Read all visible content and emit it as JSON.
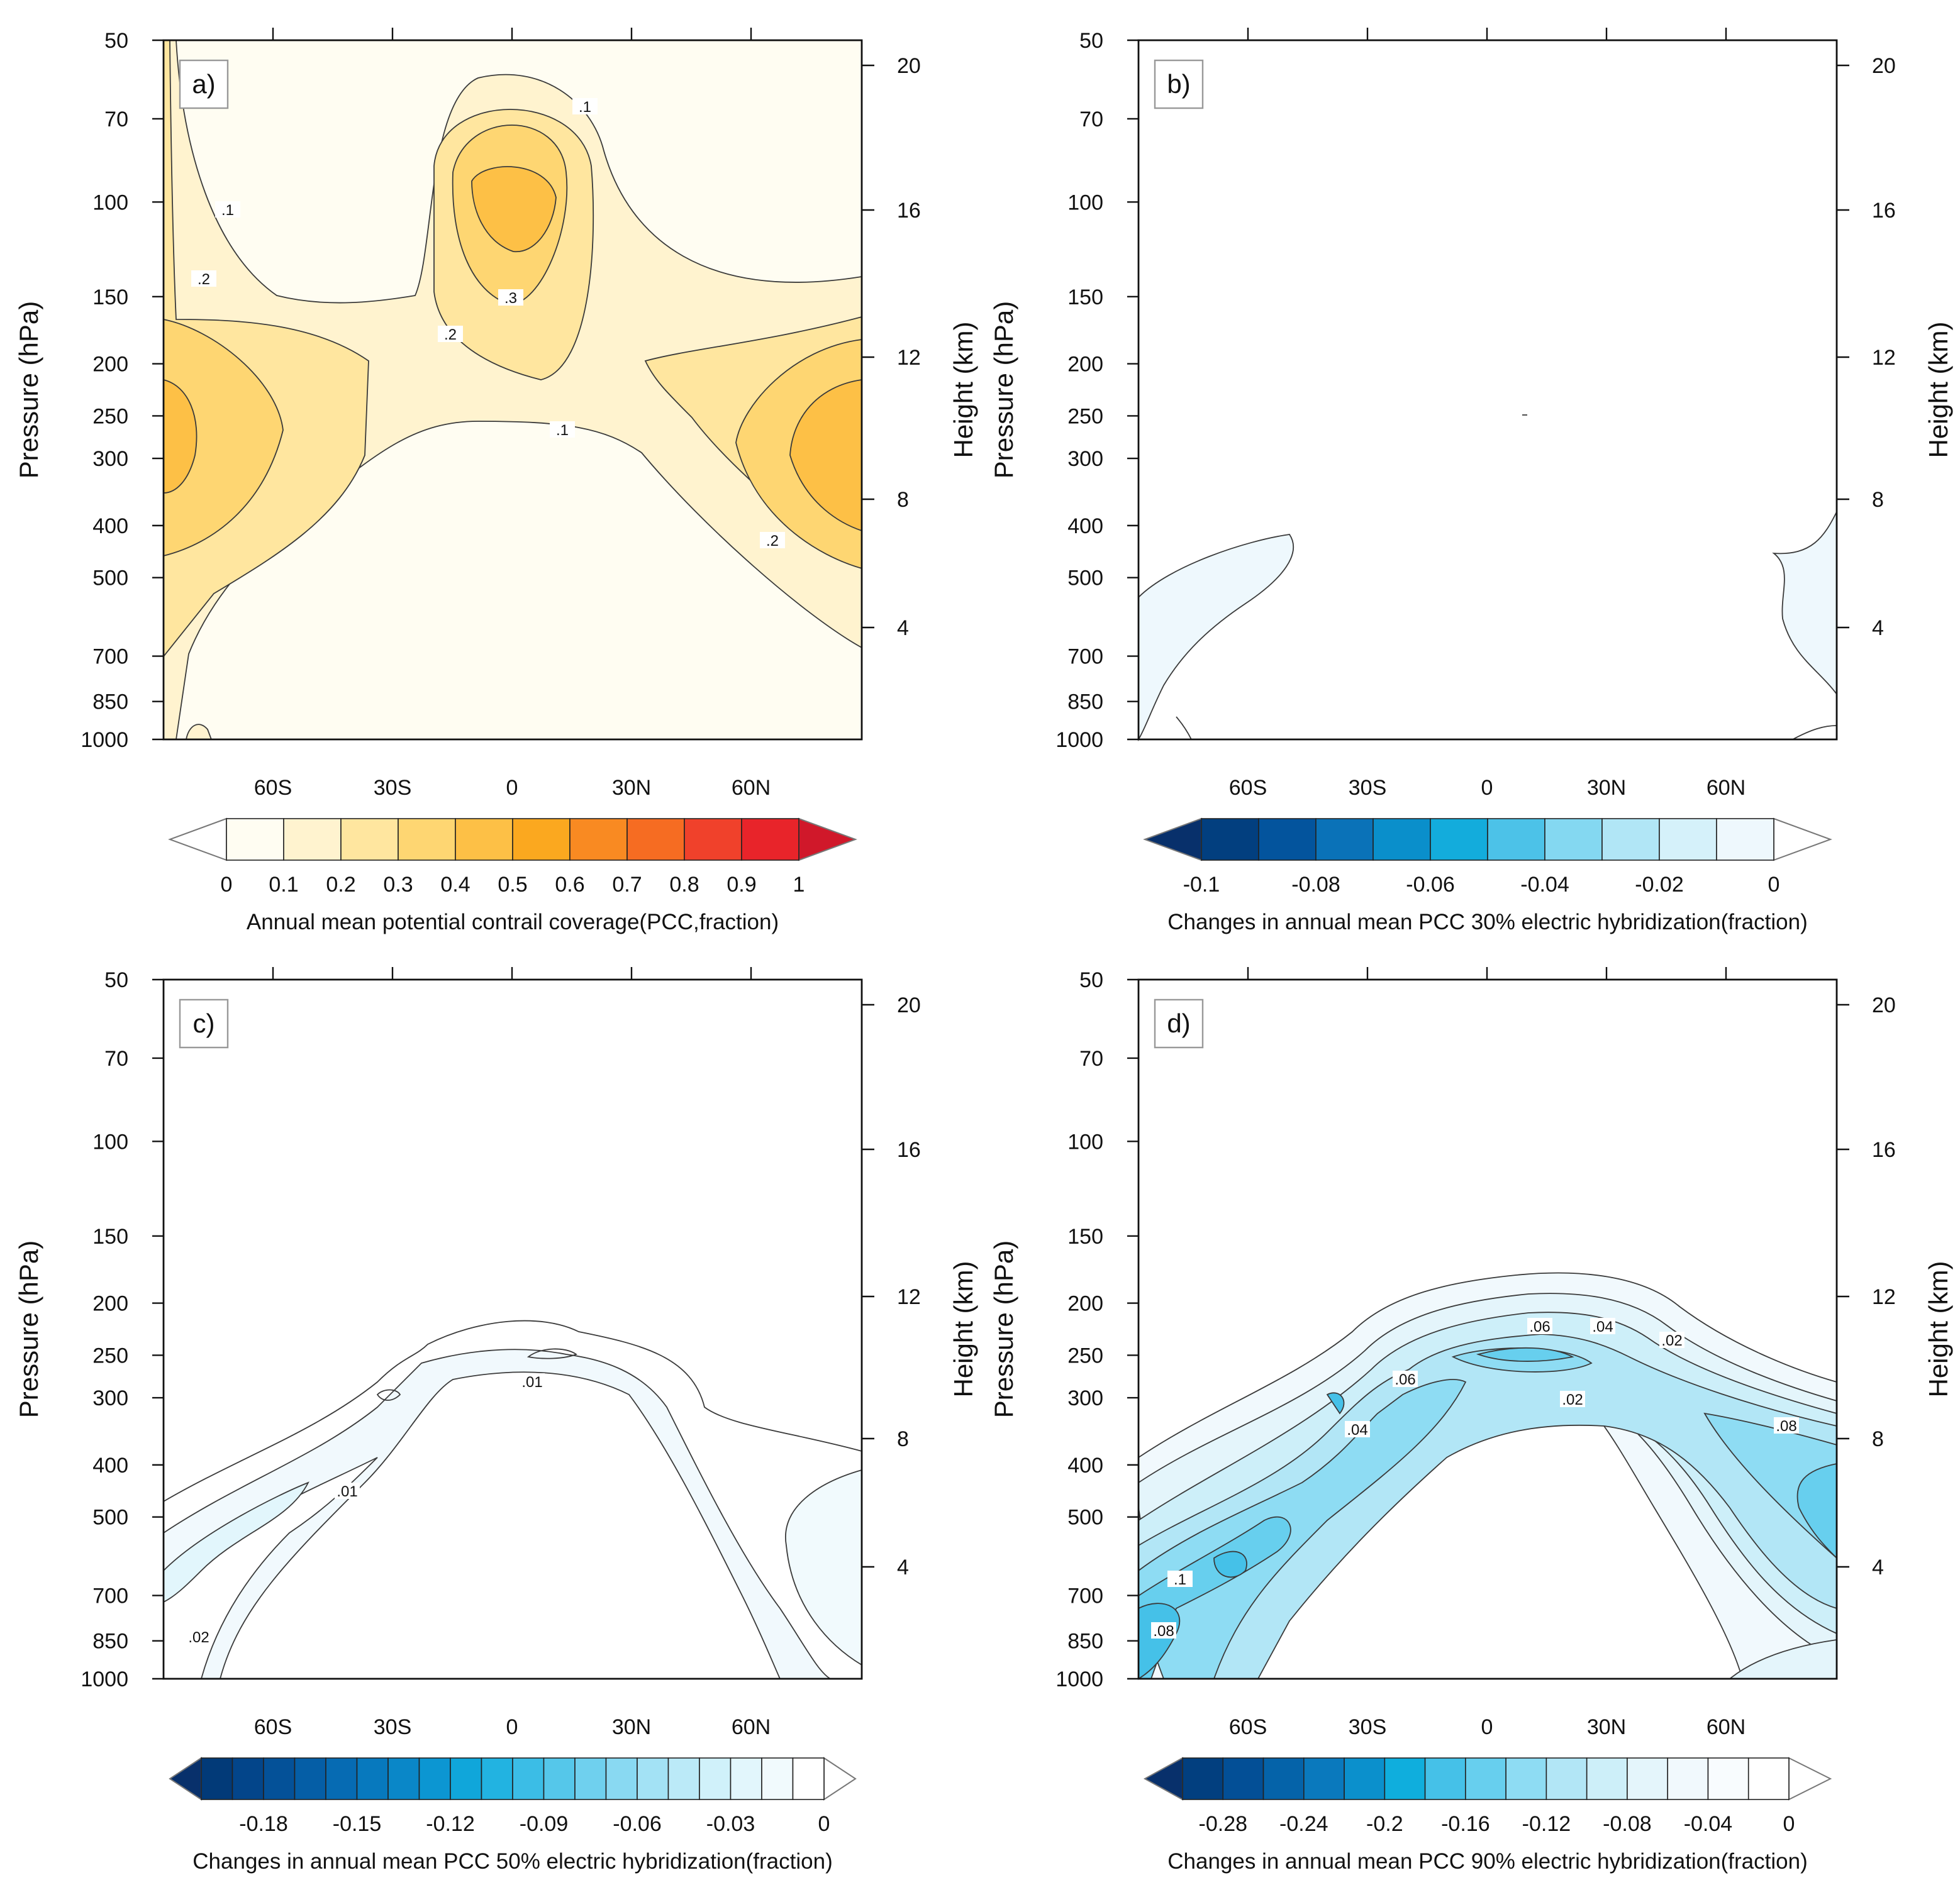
{
  "chart_data": [
    {
      "type": "heatmap",
      "panel_label": "a)",
      "ylabel": "Pressure (hPa)",
      "ylabel_right": "Height (km)",
      "xlabel": "",
      "x_ticks": [
        "60S",
        "30S",
        "0",
        "30N",
        "60N"
      ],
      "x_tick_values": [
        -60,
        -30,
        0,
        30,
        60
      ],
      "y_ticks": [
        "50",
        "70",
        "100",
        "150",
        "200",
        "250",
        "300",
        "400",
        "500",
        "700",
        "850",
        "1000"
      ],
      "y_tick_values": [
        50,
        70,
        100,
        150,
        200,
        250,
        300,
        400,
        500,
        700,
        850,
        1000
      ],
      "ylim": [
        1000,
        50
      ],
      "y_right_ticks": [
        "20",
        "16",
        "12",
        "8",
        "4"
      ],
      "contour_labels": [
        ".1",
        ".1",
        ".1",
        ".2",
        ".2",
        ".2",
        ".3"
      ],
      "colorbar": {
        "title": "Annual mean potential contrail coverage(PCC,fraction)",
        "labels": [
          "0",
          "0.1",
          "0.2",
          "0.3",
          "0.4",
          "0.5",
          "0.6",
          "0.7",
          "0.8",
          "0.9",
          "1"
        ],
        "levels": [
          0,
          0.1,
          0.2,
          0.3,
          0.4,
          0.5,
          0.6,
          0.7,
          0.8,
          0.9,
          1.0
        ],
        "colors": [
          "#fffdf2",
          "#fff3cf",
          "#ffe69f",
          "#fed672",
          "#fdc046",
          "#fba81f",
          "#f98a22",
          "#f66c22",
          "#f0412b",
          "#e8242a"
        ],
        "under_color": "#ffffff",
        "over_color": "#d0182a"
      },
      "description_max_region": "0.4-0.5 near 250-300 hPa at 80S/80N and ~100 hPa at equator"
    },
    {
      "type": "heatmap",
      "panel_label": "b)",
      "ylabel": "Pressure (hPa)",
      "ylabel_right": "Height (km)",
      "x_ticks": [
        "60S",
        "30S",
        "0",
        "30N",
        "60N"
      ],
      "y_ticks": [
        "50",
        "70",
        "100",
        "150",
        "200",
        "250",
        "300",
        "400",
        "500",
        "700",
        "850",
        "1000"
      ],
      "y_right_ticks": [
        "20",
        "16",
        "12",
        "8",
        "4"
      ],
      "contour_labels": [],
      "colorbar": {
        "title": "Changes in annual mean PCC 30% electric hybridization(fraction)",
        "labels": [
          "-0.1",
          "-0.08",
          "-0.06",
          "-0.04",
          "-0.02",
          "0"
        ],
        "levels": [
          -0.1,
          -0.09,
          -0.08,
          -0.07,
          -0.06,
          -0.05,
          -0.04,
          -0.03,
          -0.02,
          -0.01,
          0
        ],
        "colors": [
          "#023f7f",
          "#03549d",
          "#0a72b8",
          "#0a8fcb",
          "#13acdc",
          "#4cc2e8",
          "#84d8f1",
          "#b1e6f6",
          "#d5f1fa",
          "#eef8fd"
        ],
        "under_color": "#08306b",
        "over_color": "#ffffff"
      }
    },
    {
      "type": "heatmap",
      "panel_label": "c)",
      "ylabel": "Pressure (hPa)",
      "ylabel_right": "Height (km)",
      "x_ticks": [
        "60S",
        "30S",
        "0",
        "30N",
        "60N"
      ],
      "y_ticks": [
        "50",
        "70",
        "100",
        "150",
        "200",
        "250",
        "300",
        "400",
        "500",
        "700",
        "850",
        "1000"
      ],
      "y_right_ticks": [
        "20",
        "16",
        "12",
        "8",
        "4"
      ],
      "contour_labels": [
        ".01",
        ".01",
        ".02"
      ],
      "colorbar": {
        "title": "Changes in annual mean PCC 50% electric hybridization(fraction)",
        "labels": [
          "-0.18",
          "-0.15",
          "-0.12",
          "-0.09",
          "-0.06",
          "-0.03",
          "0"
        ],
        "levels": [
          -0.2,
          -0.19,
          -0.18,
          -0.17,
          -0.16,
          -0.15,
          -0.14,
          -0.13,
          -0.12,
          -0.11,
          -0.1,
          -0.09,
          -0.08,
          -0.07,
          -0.06,
          -0.05,
          -0.04,
          -0.03,
          -0.02,
          -0.01,
          0
        ],
        "colors": [
          "#023a78",
          "#03458a",
          "#045198",
          "#055ea6",
          "#066bb3",
          "#0779be",
          "#0a87c8",
          "#0c96d2",
          "#10a6da",
          "#22b3e1",
          "#3bbde6",
          "#55c7ea",
          "#6fd0ee",
          "#89d9f2",
          "#a3e2f5",
          "#bbeaf8",
          "#d0f1fa",
          "#e2f6fc",
          "#f1fafd",
          "#ffffff"
        ],
        "under_color": "#08306b",
        "over_color": "#ffffff"
      }
    },
    {
      "type": "heatmap",
      "panel_label": "d)",
      "ylabel": "Pressure (hPa)",
      "ylabel_right": "Height (km)",
      "x_ticks": [
        "60S",
        "30S",
        "0",
        "30N",
        "60N"
      ],
      "y_ticks": [
        "50",
        "70",
        "100",
        "150",
        "200",
        "250",
        "300",
        "400",
        "500",
        "700",
        "850",
        "1000"
      ],
      "y_right_ticks": [
        "20",
        "16",
        "12",
        "8",
        "4"
      ],
      "contour_labels": [
        ".06",
        ".04",
        ".02",
        ".06",
        ".02",
        ".04",
        ".08",
        ".1",
        ".08"
      ],
      "colorbar": {
        "title": "Changes in annual mean PCC 90% electric hybridization(fraction)",
        "labels": [
          "-0.28",
          "-0.24",
          "-0.2",
          "-0.16",
          "-0.12",
          "-0.08",
          "-0.04",
          "0"
        ],
        "levels": [
          -0.3,
          -0.28,
          -0.26,
          -0.24,
          -0.22,
          -0.2,
          -0.18,
          -0.16,
          -0.14,
          -0.12,
          -0.1,
          -0.08,
          -0.06,
          -0.04,
          -0.02,
          0
        ],
        "colors": [
          "#023f7f",
          "#034f96",
          "#0563a9",
          "#0a79bd",
          "#0b90cc",
          "#0faedd",
          "#45c1e8",
          "#67cfee",
          "#8edcf3",
          "#b2e6f6",
          "#cdeff9",
          "#e4f5fb",
          "#f1f9fd",
          "#f8fcfe",
          "#ffffff"
        ],
        "under_color": "#08306b",
        "over_color": "#ffffff"
      }
    }
  ]
}
